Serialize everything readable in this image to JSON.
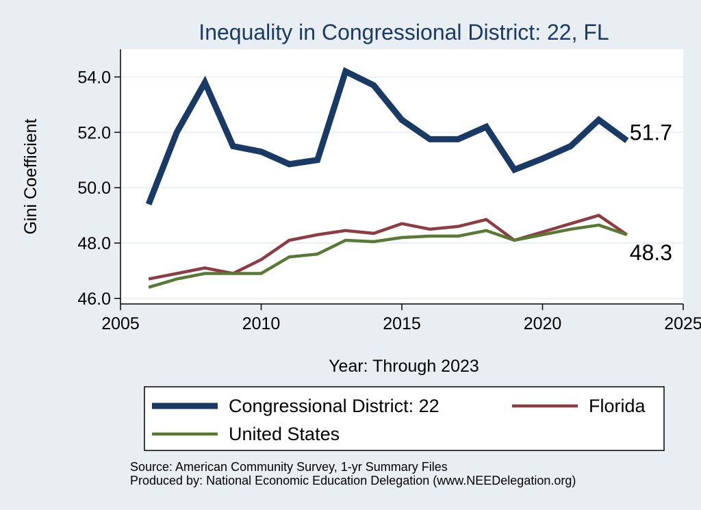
{
  "chart_data": {
    "type": "line",
    "title": "Inequality in Congressional District:  22, FL",
    "xlabel": "Year: Through 2023",
    "ylabel": "Gini Coefficient",
    "xlim": [
      2005,
      2025
    ],
    "ylim": [
      45.8,
      55.0
    ],
    "xticks": [
      2005,
      2010,
      2015,
      2020,
      2025
    ],
    "yticks": [
      46.0,
      48.0,
      50.0,
      52.0,
      54.0
    ],
    "xtick_labels": [
      "2005",
      "2010",
      "2015",
      "2020",
      "2025"
    ],
    "ytick_labels": [
      "46.0",
      "48.0",
      "50.0",
      "52.0",
      "54.0"
    ],
    "grid": true,
    "legend_position": "bottom",
    "x": [
      2006,
      2007,
      2008,
      2009,
      2010,
      2011,
      2012,
      2013,
      2014,
      2015,
      2016,
      2017,
      2018,
      2019,
      2020,
      2021,
      2022,
      2023
    ],
    "series": [
      {
        "name": "Congressional District:  22",
        "color": "#1a3a66",
        "values": [
          49.4,
          52.0,
          53.8,
          51.5,
          51.3,
          50.85,
          51.0,
          54.2,
          53.7,
          52.45,
          51.75,
          51.75,
          52.2,
          50.65,
          51.05,
          51.5,
          52.45,
          51.7
        ]
      },
      {
        "name": "Florida",
        "color": "#8f3b43",
        "values": [
          46.7,
          46.9,
          47.1,
          46.9,
          47.4,
          48.1,
          48.3,
          48.45,
          48.35,
          48.7,
          48.5,
          48.6,
          48.85,
          48.1,
          48.4,
          48.7,
          49.0,
          48.3
        ]
      },
      {
        "name": "United States",
        "color": "#597a35",
        "values": [
          46.4,
          46.7,
          46.9,
          46.9,
          46.9,
          47.5,
          47.6,
          48.1,
          48.05,
          48.2,
          48.25,
          48.25,
          48.45,
          48.1,
          48.3,
          48.5,
          48.65,
          48.3
        ]
      }
    ],
    "end_labels": [
      "51.7",
      "48.3"
    ]
  },
  "source_lines": [
    "Source: American Community Survey, 1-yr Summary Files",
    "Produced by: National Economic Education Delegation (www.NEEDelegation.org)"
  ]
}
